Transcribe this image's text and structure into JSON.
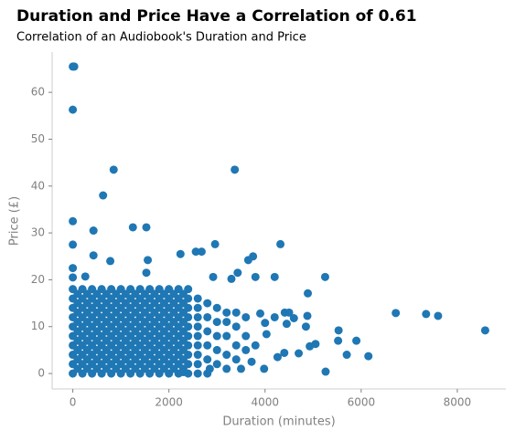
{
  "chart_data": {
    "type": "scatter",
    "title": "Duration and Price Have a Correlation of 0.61",
    "subtitle": "Correlation of an Audiobook's Duration and Price",
    "x_label": "Duration (minutes)",
    "y_label": "Price (£)",
    "color": "#1f77b4",
    "grid": false,
    "xlim": [
      -430,
      9010
    ],
    "ylim": [
      -3.3,
      68.6
    ],
    "xticks": [
      0,
      2000,
      4000,
      6000,
      8000
    ],
    "yticks": [
      0,
      10,
      20,
      30,
      40,
      50,
      60
    ],
    "x": [
      0,
      0,
      0,
      0,
      0,
      0,
      0,
      0,
      0,
      0,
      200,
      200,
      200,
      200,
      200,
      200,
      200,
      200,
      200,
      200,
      400,
      400,
      400,
      400,
      400,
      400,
      400,
      400,
      400,
      400,
      600,
      600,
      600,
      600,
      600,
      600,
      600,
      600,
      600,
      600,
      800,
      800,
      800,
      800,
      800,
      800,
      800,
      800,
      800,
      800,
      1000,
      1000,
      1000,
      1000,
      1000,
      1000,
      1000,
      1000,
      1000,
      1000,
      1200,
      1200,
      1200,
      1200,
      1200,
      1200,
      1200,
      1200,
      1200,
      1200,
      1400,
      1400,
      1400,
      1400,
      1400,
      1400,
      1400,
      1400,
      1400,
      1400,
      1600,
      1600,
      1600,
      1600,
      1600,
      1600,
      1600,
      1600,
      1600,
      1600,
      1800,
      1800,
      1800,
      1800,
      1800,
      1800,
      1800,
      1800,
      1800,
      1800,
      2000,
      2000,
      2000,
      2000,
      2000,
      2000,
      2000,
      2000,
      2000,
      2000,
      2200,
      2200,
      2200,
      2200,
      2200,
      2200,
      2200,
      2200,
      2200,
      2200,
      2400,
      2400,
      2400,
      2400,
      2400,
      2400,
      2400,
      2400,
      2400,
      2400,
      100,
      100,
      100,
      100,
      100,
      100,
      100,
      100,
      100,
      300,
      300,
      300,
      300,
      300,
      300,
      300,
      300,
      300,
      500,
      500,
      500,
      500,
      500,
      500,
      500,
      500,
      500,
      700,
      700,
      700,
      700,
      700,
      700,
      700,
      700,
      700,
      900,
      900,
      900,
      900,
      900,
      900,
      900,
      900,
      900,
      1100,
      1100,
      1100,
      1100,
      1100,
      1100,
      1100,
      1100,
      1100,
      1300,
      1300,
      1300,
      1300,
      1300,
      1300,
      1300,
      1300,
      1300,
      1500,
      1500,
      1500,
      1500,
      1500,
      1500,
      1500,
      1500,
      1500,
      1700,
      1700,
      1700,
      1700,
      1700,
      1700,
      1700,
      1700,
      1700,
      1900,
      1900,
      1900,
      1900,
      1900,
      1900,
      1900,
      1900,
      1900,
      2100,
      2100,
      2100,
      2100,
      2100,
      2100,
      2100,
      2100,
      2100,
      2300,
      2300,
      2300,
      2300,
      2300,
      2300,
      2300,
      2300,
      2300,
      2600,
      2600,
      2600,
      2600,
      2600,
      2600,
      2600,
      2600,
      2600,
      2800,
      2800,
      2800,
      2800,
      2800,
      2800,
      3000,
      3000,
      3000,
      3000,
      3000,
      3200,
      3200,
      3200,
      3200,
      3200,
      3400,
      3400,
      3400,
      3400,
      3600,
      3600,
      3600,
      0,
      30,
      0,
      850,
      3370,
      630,
      0,
      430,
      1250,
      1530,
      0,
      2960,
      4320,
      2560,
      2680,
      3750,
      3650,
      2240,
      1560,
      430,
      780,
      0,
      0,
      260,
      5250,
      4200,
      3800,
      2920,
      3300,
      3430,
      1530,
      4890,
      6720,
      7350,
      7600,
      8580,
      5260,
      6150,
      5900,
      5530,
      5520,
      5700,
      5050,
      4930,
      4700,
      4400,
      4260,
      3980,
      3720,
      4880,
      4850,
      4450,
      4600,
      4410,
      4500,
      4200,
      3900,
      4030,
      4000,
      3800,
      3500,
      2850,
      2300
    ],
    "values": [
      0,
      2,
      4,
      6,
      8,
      10,
      12,
      14,
      16,
      18,
      0,
      2,
      4,
      6,
      8,
      10,
      12,
      14,
      16,
      18,
      0,
      2,
      4,
      6,
      8,
      10,
      12,
      14,
      16,
      18,
      0,
      2,
      4,
      6,
      8,
      10,
      12,
      14,
      16,
      18,
      0,
      2,
      4,
      6,
      8,
      10,
      12,
      14,
      16,
      18,
      0,
      2,
      4,
      6,
      8,
      10,
      12,
      14,
      16,
      18,
      0,
      2,
      4,
      6,
      8,
      10,
      12,
      14,
      16,
      18,
      0,
      2,
      4,
      6,
      8,
      10,
      12,
      14,
      16,
      18,
      0,
      2,
      4,
      6,
      8,
      10,
      12,
      14,
      16,
      18,
      0,
      2,
      4,
      6,
      8,
      10,
      12,
      14,
      16,
      18,
      0,
      2,
      4,
      6,
      8,
      10,
      12,
      14,
      16,
      18,
      0,
      2,
      4,
      6,
      8,
      10,
      12,
      14,
      16,
      18,
      0,
      2,
      4,
      6,
      8,
      10,
      12,
      14,
      16,
      18,
      1,
      3,
      5,
      7,
      9,
      11,
      13,
      15,
      17,
      1,
      3,
      5,
      7,
      9,
      11,
      13,
      15,
      17,
      1,
      3,
      5,
      7,
      9,
      11,
      13,
      15,
      17,
      1,
      3,
      5,
      7,
      9,
      11,
      13,
      15,
      17,
      1,
      3,
      5,
      7,
      9,
      11,
      13,
      15,
      17,
      1,
      3,
      5,
      7,
      9,
      11,
      13,
      15,
      17,
      1,
      3,
      5,
      7,
      9,
      11,
      13,
      15,
      17,
      1,
      3,
      5,
      7,
      9,
      11,
      13,
      15,
      17,
      1,
      3,
      5,
      7,
      9,
      11,
      13,
      15,
      17,
      1,
      3,
      5,
      7,
      9,
      11,
      13,
      15,
      17,
      1,
      3,
      5,
      7,
      9,
      11,
      13,
      15,
      17,
      1,
      3,
      5,
      7,
      9,
      11,
      13,
      15,
      17,
      0,
      2,
      4,
      6,
      8,
      10,
      12,
      14,
      16,
      0,
      3,
      6,
      9,
      12,
      15,
      2,
      5,
      8,
      11,
      14,
      1,
      4,
      8,
      11,
      13,
      3,
      6,
      10,
      13,
      5,
      8,
      12,
      65.5,
      65.5,
      56.3,
      43.5,
      43.5,
      38,
      32.5,
      30.5,
      31.2,
      31.2,
      27.5,
      27.6,
      27.6,
      26,
      26,
      25,
      24.2,
      25.5,
      24.2,
      25.2,
      24,
      22.5,
      20.5,
      20.7,
      20.6,
      20.6,
      20.6,
      20.6,
      20.2,
      21.5,
      21.5,
      17.1,
      12.9,
      12.7,
      12.3,
      9.2,
      0.4,
      3.7,
      7,
      9.2,
      7,
      4,
      6.3,
      5.8,
      4.3,
      4.4,
      3.5,
      1,
      2.5,
      12.3,
      10,
      10.6,
      11.8,
      13,
      13,
      12,
      12.8,
      8.4,
      10.8,
      6,
      1,
      1,
      0.3
    ]
  }
}
